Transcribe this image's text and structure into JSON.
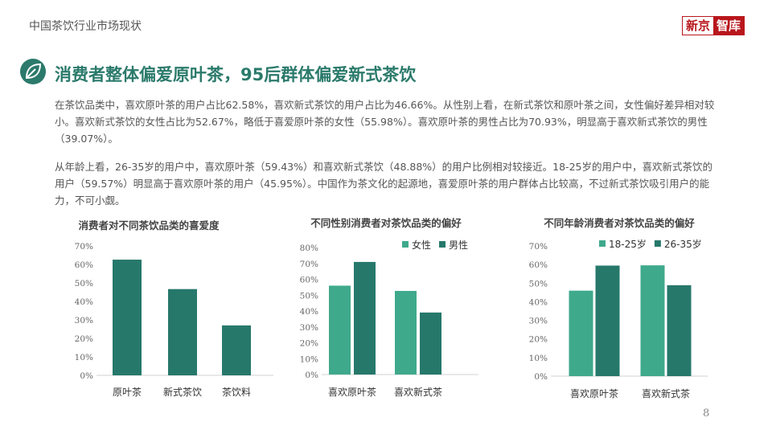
{
  "header": {
    "section_title": "中国茶饮行业市场现状",
    "logo_part1": "新京",
    "logo_part2": "智库"
  },
  "slide": {
    "heading": "消费者整体偏爱原叶茶，95后群体偏爱新式茶饮",
    "paragraph1": "在茶饮品类中，喜欢原叶茶的用户占比62.58%，喜欢新式茶饮的用户占比为46.66%。从性别上看，在新式茶饮和原叶茶之间，女性偏好差异相对较小。喜欢新式茶饮的女性占比为52.67%，略低于喜爱原叶茶的女性（55.98%）。喜欢原叶茶的男性占比为70.93%，明显高于喜欢新式茶饮的男性（39.07%）。",
    "paragraph2": "从年龄上看，26-35岁的用户中，喜欢原叶茶（59.43%）和喜欢新式茶饮（48.88%）的用户比例相对较接近。18-25岁的用户中，喜欢新式茶饮的用户（59.57%）明显高于喜欢原叶茶的用户（45.95%）。中国作为茶文化的起源地，喜爱原叶茶的用户群体占比较高，不过新式茶饮吸引用户的能力，不可小觑。",
    "page_number": "8"
  },
  "colors": {
    "accent": "#2b7a6b",
    "light_green": "#3fa98c",
    "dark_green": "#26786b",
    "logo_red": "#b8171c"
  },
  "chart_data": [
    {
      "type": "bar",
      "title": "消费者对不同茶饮品类的喜爱度",
      "categories": [
        "原叶茶",
        "新式茶饮",
        "茶饮料"
      ],
      "series": [
        {
          "values": [
            62.58,
            46.66,
            27
          ],
          "color": "#26786b"
        }
      ],
      "ylim": [
        0,
        70
      ],
      "yticks": [
        "0%",
        "10%",
        "20%",
        "30%",
        "40%",
        "50%",
        "60%",
        "70%"
      ],
      "legend": "none",
      "grid": false
    },
    {
      "type": "bar",
      "title": "不同性别消费者对茶饮品类的偏好",
      "categories": [
        "喜欢原叶茶",
        "喜欢新式茶"
      ],
      "series": [
        {
          "name": "女性",
          "values": [
            55.98,
            52.67
          ],
          "color": "#3fa98c"
        },
        {
          "name": "男性",
          "values": [
            70.93,
            39.07
          ],
          "color": "#26786b"
        }
      ],
      "ylim": [
        0,
        80
      ],
      "yticks": [
        "0%",
        "10%",
        "20%",
        "30%",
        "40%",
        "50%",
        "60%",
        "70%",
        "80%"
      ],
      "legend": "top-right",
      "grid": false
    },
    {
      "type": "bar",
      "title": "不同年龄消费者对茶饮品类的偏好",
      "categories": [
        "喜欢原叶茶",
        "喜欢新式茶"
      ],
      "series": [
        {
          "name": "18-25岁",
          "values": [
            45.95,
            59.57
          ],
          "color": "#3fa98c"
        },
        {
          "name": "26-35岁",
          "values": [
            59.43,
            48.88
          ],
          "color": "#26786b"
        }
      ],
      "ylim": [
        0,
        70
      ],
      "yticks": [
        "0%",
        "10%",
        "20%",
        "30%",
        "40%",
        "50%",
        "60%",
        "70%"
      ],
      "legend": "top-right",
      "grid": false
    }
  ]
}
